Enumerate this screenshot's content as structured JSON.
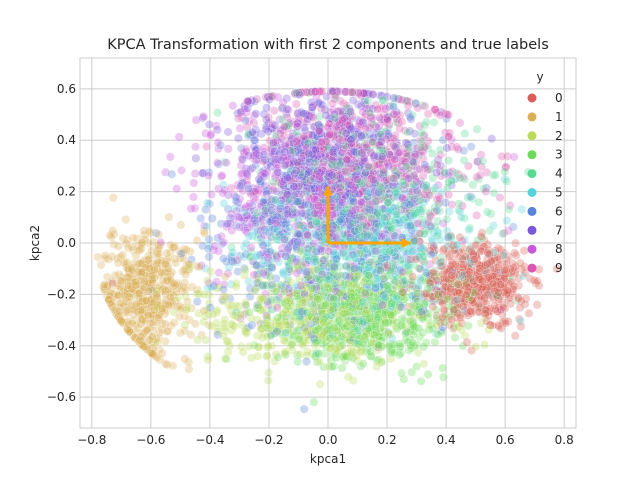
{
  "chart_data": {
    "type": "scatter",
    "title": "KPCA Transformation with first 2 components and true labels",
    "xlabel": "kpca1",
    "ylabel": "kpca2",
    "xlim": [
      -0.84,
      0.84
    ],
    "ylim": [
      -0.72,
      0.72
    ],
    "xticks": [
      -0.8,
      -0.6,
      -0.4,
      -0.2,
      0.0,
      0.2,
      0.4,
      0.6,
      0.8
    ],
    "yticks": [
      -0.6,
      -0.4,
      -0.2,
      0.0,
      0.2,
      0.4,
      0.6
    ],
    "xtick_labels": [
      "−0.8",
      "−0.6",
      "−0.4",
      "−0.2",
      "0.0",
      "0.2",
      "0.4",
      "0.6",
      "0.8"
    ],
    "ytick_labels": [
      "−0.6",
      "−0.4",
      "−0.2",
      "0.0",
      "0.2",
      "0.4",
      "0.6"
    ],
    "grid": true,
    "legend": {
      "title": "y",
      "placement": "top-right",
      "entries": [
        "0",
        "1",
        "2",
        "3",
        "4",
        "5",
        "6",
        "7",
        "8",
        "9"
      ]
    },
    "series": [
      {
        "name": "0",
        "color": "#db5f57",
        "center": [
          0.5,
          -0.16
        ],
        "spread": [
          0.09,
          0.08
        ]
      },
      {
        "name": "1",
        "color": "#dbae57",
        "center": [
          -0.62,
          -0.2
        ],
        "spread": [
          0.08,
          0.12
        ]
      },
      {
        "name": "2",
        "color": "#b9db57",
        "center": [
          -0.05,
          -0.27
        ],
        "spread": [
          0.2,
          0.1
        ]
      },
      {
        "name": "3",
        "color": "#69db57",
        "center": [
          0.12,
          -0.28
        ],
        "spread": [
          0.15,
          0.1
        ]
      },
      {
        "name": "4",
        "color": "#57db94",
        "center": [
          0.15,
          0.15
        ],
        "spread": [
          0.18,
          0.18
        ]
      },
      {
        "name": "5",
        "color": "#57d3db",
        "center": [
          0.1,
          -0.05
        ],
        "spread": [
          0.2,
          0.14
        ]
      },
      {
        "name": "6",
        "color": "#5784db",
        "center": [
          0.0,
          0.05
        ],
        "spread": [
          0.2,
          0.2
        ]
      },
      {
        "name": "7",
        "color": "#7957db",
        "center": [
          0.0,
          0.33
        ],
        "spread": [
          0.16,
          0.15
        ]
      },
      {
        "name": "8",
        "color": "#c957db",
        "center": [
          -0.05,
          0.15
        ],
        "spread": [
          0.2,
          0.18
        ]
      },
      {
        "name": "9",
        "color": "#db57b2",
        "center": [
          0.1,
          0.35
        ],
        "spread": [
          0.18,
          0.15
        ]
      }
    ],
    "arrows": [
      {
        "from": [
          0,
          0
        ],
        "to": [
          0.28,
          0
        ],
        "color": "#ffa500"
      },
      {
        "from": [
          0,
          0
        ],
        "to": [
          0,
          0.22
        ],
        "color": "#ffa500"
      }
    ],
    "point_alpha": 0.32,
    "points_per_series": 520
  }
}
